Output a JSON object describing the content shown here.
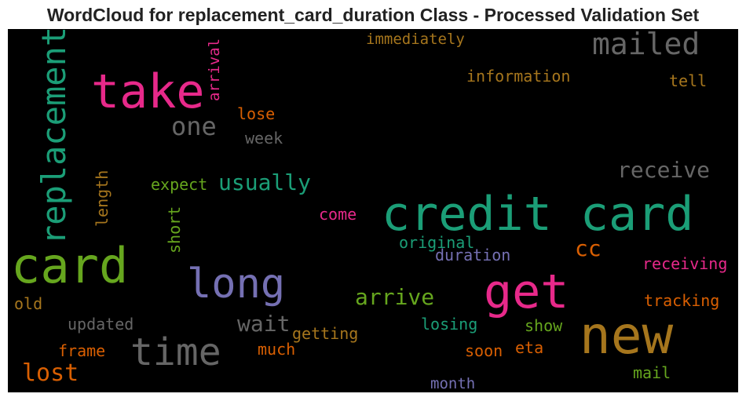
{
  "title": "WordCloud for replacement_card_duration Class - Processed Validation Set",
  "words": [
    {
      "text": "credit card",
      "color": "#1b9e77"
    },
    {
      "text": "new",
      "color": "#a6761d"
    },
    {
      "text": "get",
      "color": "#e7298a"
    },
    {
      "text": "card",
      "color": "#66a61e"
    },
    {
      "text": "take",
      "color": "#e7298a"
    },
    {
      "text": "replacement",
      "color": "#1b9e77"
    },
    {
      "text": "long",
      "color": "#7570b3"
    },
    {
      "text": "time",
      "color": "#666666"
    },
    {
      "text": "mailed",
      "color": "#666666"
    },
    {
      "text": "one",
      "color": "#666666"
    },
    {
      "text": "usually",
      "color": "#1b9e77"
    },
    {
      "text": "receive",
      "color": "#666666"
    },
    {
      "text": "arrive",
      "color": "#66a61e"
    },
    {
      "text": "wait",
      "color": "#666666"
    },
    {
      "text": "lost",
      "color": "#d95f02"
    },
    {
      "text": "cc",
      "color": "#d95f02"
    },
    {
      "text": "immediately",
      "color": "#a6761d"
    },
    {
      "text": "information",
      "color": "#a6761d"
    },
    {
      "text": "tell",
      "color": "#a6761d"
    },
    {
      "text": "arrival",
      "color": "#e7298a"
    },
    {
      "text": "lose",
      "color": "#d95f02"
    },
    {
      "text": "week",
      "color": "#666666"
    },
    {
      "text": "expect",
      "color": "#66a61e"
    },
    {
      "text": "length",
      "color": "#a6761d"
    },
    {
      "text": "short",
      "color": "#66a61e"
    },
    {
      "text": "come",
      "color": "#e7298a"
    },
    {
      "text": "original",
      "color": "#1b9e77"
    },
    {
      "text": "duration",
      "color": "#7570b3"
    },
    {
      "text": "receiving",
      "color": "#e7298a"
    },
    {
      "text": "tracking",
      "color": "#d95f02"
    },
    {
      "text": "old",
      "color": "#a6761d"
    },
    {
      "text": "updated",
      "color": "#666666"
    },
    {
      "text": "getting",
      "color": "#a6761d"
    },
    {
      "text": "losing",
      "color": "#1b9e77"
    },
    {
      "text": "show",
      "color": "#66a61e"
    },
    {
      "text": "frame",
      "color": "#d95f02"
    },
    {
      "text": "much",
      "color": "#d95f02"
    },
    {
      "text": "soon",
      "color": "#d95f02"
    },
    {
      "text": "eta",
      "color": "#d95f02"
    },
    {
      "text": "mail",
      "color": "#66a61e"
    },
    {
      "text": "month",
      "color": "#7570b3"
    }
  ]
}
